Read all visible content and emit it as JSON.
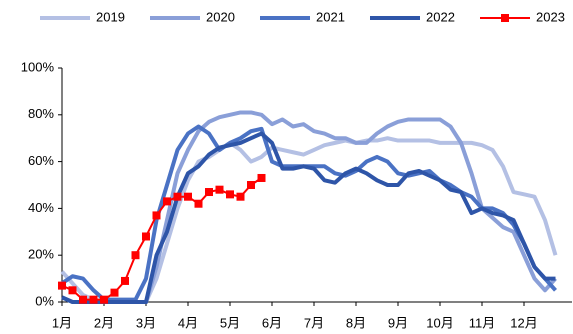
{
  "chart_data": {
    "type": "line",
    "categories": [
      "1月",
      null,
      null,
      null,
      "2月",
      null,
      null,
      null,
      "3月",
      null,
      null,
      null,
      "4月",
      null,
      null,
      null,
      "5月",
      null,
      null,
      null,
      "6月",
      null,
      null,
      null,
      "7月",
      null,
      null,
      null,
      "8月",
      null,
      null,
      null,
      "9月",
      null,
      null,
      null,
      "10月",
      null,
      null,
      null,
      "11月",
      null,
      null,
      null,
      "12月",
      null,
      null,
      null
    ],
    "ylim": [
      0,
      100
    ],
    "yticks": [
      {
        "value": 0,
        "label": "0%"
      },
      {
        "value": 20,
        "label": "20%"
      },
      {
        "value": 40,
        "label": "40%"
      },
      {
        "value": 60,
        "label": "60%"
      },
      {
        "value": 80,
        "label": "80%"
      },
      {
        "value": 100,
        "label": "100%"
      }
    ],
    "series": [
      {
        "name": "2019",
        "color": "#b4c0e4",
        "values": [
          13,
          8,
          3,
          1,
          0,
          0,
          0,
          0,
          0,
          10,
          25,
          40,
          52,
          60,
          62,
          65,
          68,
          65,
          60,
          62,
          66,
          65,
          64,
          63,
          65,
          67,
          68,
          69,
          68,
          69,
          69,
          70,
          69,
          69,
          69,
          69,
          68,
          68,
          68,
          68,
          67,
          65,
          58,
          47,
          46,
          45,
          35,
          20
        ]
      },
      {
        "name": "2020",
        "color": "#8a9fd8",
        "values": [
          2,
          0,
          0,
          0,
          0,
          0,
          0,
          0,
          0,
          15,
          35,
          55,
          65,
          73,
          77,
          79,
          80,
          81,
          81,
          80,
          76,
          78,
          75,
          76,
          73,
          72,
          70,
          70,
          68,
          68,
          72,
          75,
          77,
          78,
          78,
          78,
          78,
          75,
          68,
          55,
          40,
          36,
          32,
          30,
          20,
          10,
          5,
          10
        ]
      },
      {
        "name": "2021",
        "color": "#4a72c4",
        "values": [
          8,
          11,
          10,
          5,
          1,
          1,
          1,
          1,
          10,
          35,
          50,
          65,
          72,
          75,
          72,
          65,
          68,
          70,
          73,
          74,
          60,
          58,
          58,
          58,
          58,
          58,
          55,
          54,
          56,
          60,
          62,
          60,
          55,
          54,
          55,
          56,
          52,
          50,
          47,
          45,
          40,
          40,
          38,
          33,
          25,
          15,
          10,
          5
        ]
      },
      {
        "name": "2022",
        "color": "#2e55a8",
        "values": [
          2,
          0,
          0,
          0,
          0,
          0,
          0,
          0,
          0,
          20,
          30,
          45,
          55,
          58,
          63,
          66,
          67,
          68,
          70,
          72,
          68,
          57,
          57,
          58,
          57,
          52,
          51,
          55,
          57,
          55,
          52,
          50,
          50,
          55,
          56,
          54,
          52,
          48,
          47,
          38,
          40,
          38,
          37,
          35,
          25,
          15,
          10,
          10
        ]
      },
      {
        "name": "2023",
        "color": "#ff0000",
        "marker": "square",
        "values": [
          7,
          5,
          1,
          1,
          1,
          4,
          9,
          20,
          28,
          37,
          43,
          45,
          45,
          42,
          47,
          48,
          46,
          45,
          50,
          53,
          null,
          null,
          null,
          null,
          null,
          null,
          null,
          null,
          null,
          null,
          null,
          null,
          null,
          null,
          null,
          null,
          null,
          null,
          null,
          null,
          null,
          null,
          null,
          null,
          null,
          null,
          null,
          null
        ]
      }
    ]
  }
}
